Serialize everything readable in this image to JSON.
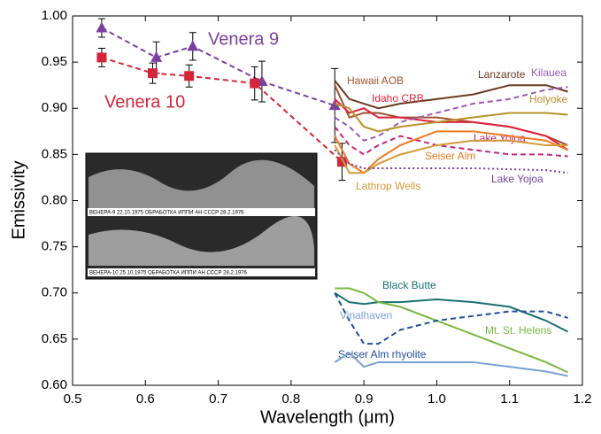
{
  "chart_data": {
    "type": "line",
    "xlabel": "Wavelength (μm)",
    "ylabel": "Emissivity",
    "xlim": [
      0.5,
      1.2
    ],
    "ylim": [
      0.6,
      1.0
    ],
    "xticks": [
      0.5,
      0.6,
      0.7,
      0.8,
      0.9,
      {
        "value": 1.0,
        "label": "1.0"
      },
      1.1,
      1.2
    ],
    "yticks": [
      {
        "value": 0.6,
        "label": "0.60"
      },
      0.65,
      {
        "value": 0.7,
        "label": "0.70"
      },
      0.75,
      {
        "value": 0.8,
        "label": "0.80"
      },
      0.85,
      {
        "value": 0.9,
        "label": "0.90"
      },
      0.95,
      {
        "value": 1.0,
        "label": "1.00"
      }
    ],
    "inset": {
      "captions": [
        "ВЕНЕРА-9   22.10.1975     ОБРАБОТКА ИППИ АН СССР   28.2.1976",
        "ВЕНЕРА-10  25.10.1975     ОБРАБОТКА ИППИ АН СССР   28.2.1976"
      ]
    },
    "series": [
      {
        "name": "Venera 9",
        "color": "#7b3fa0",
        "style": "dashed",
        "marker": "triangle",
        "x": [
          0.54,
          0.615,
          0.665,
          0.76,
          0.86
        ],
        "values": [
          0.987,
          0.955,
          0.967,
          0.929,
          0.903
        ],
        "errors": [
          0.01,
          0.017,
          0.015,
          0.022,
          0.04
        ]
      },
      {
        "name": "Venera 10",
        "color": "#d3263a",
        "style": "dashed",
        "marker": "square",
        "x": [
          0.54,
          0.61,
          0.66,
          0.75,
          0.87
        ],
        "values": [
          0.955,
          0.938,
          0.935,
          0.927,
          0.842
        ],
        "errors": [
          0.01,
          0.011,
          0.012,
          0.018,
          0.02
        ]
      },
      {
        "name": "Lanzarote",
        "color": "#6b3a1f",
        "style": "solid",
        "x": [
          0.86,
          0.88,
          0.9,
          0.92,
          0.95,
          1.0,
          1.05,
          1.1,
          1.15,
          1.18
        ],
        "values": [
          0.93,
          0.91,
          0.905,
          0.9,
          0.905,
          0.91,
          0.915,
          0.925,
          0.925,
          0.918
        ]
      },
      {
        "name": "Hawaii AOB",
        "color": "#a0522d",
        "style": "solid",
        "x": [
          0.86,
          0.88,
          0.9,
          0.92,
          0.95,
          1.0,
          1.05,
          1.1,
          1.15,
          1.18
        ],
        "values": [
          0.925,
          0.89,
          0.895,
          0.895,
          0.89,
          0.89,
          0.885,
          0.88,
          0.87,
          0.86
        ]
      },
      {
        "name": "Idaho CRB",
        "color": "#e0203a",
        "style": "solid",
        "x": [
          0.86,
          0.88,
          0.9,
          0.92,
          0.95,
          1.0,
          1.05,
          1.1,
          1.15,
          1.18
        ],
        "values": [
          0.91,
          0.895,
          0.9,
          0.89,
          0.89,
          0.885,
          0.885,
          0.88,
          0.87,
          0.855
        ]
      },
      {
        "name": "Kilauea",
        "color": "#9b59b6",
        "style": "dashed",
        "x": [
          0.86,
          0.88,
          0.9,
          0.92,
          0.95,
          1.0,
          1.05,
          1.1,
          1.15,
          1.18
        ],
        "values": [
          0.89,
          0.88,
          0.865,
          0.87,
          0.885,
          0.895,
          0.905,
          0.91,
          0.92,
          0.923
        ]
      },
      {
        "name": "Holyoke",
        "color": "#b8912a",
        "style": "solid",
        "x": [
          0.86,
          0.88,
          0.9,
          0.92,
          0.95,
          1.0,
          1.05,
          1.1,
          1.15,
          1.18
        ],
        "values": [
          0.905,
          0.9,
          0.88,
          0.875,
          0.88,
          0.885,
          0.89,
          0.895,
          0.895,
          0.893
        ]
      },
      {
        "name": "Lake Yojoa",
        "color": "#c0267a",
        "style": "dashed",
        "x": [
          0.86,
          0.88,
          0.9,
          0.92,
          0.95,
          1.0,
          1.05,
          1.1,
          1.15,
          1.18
        ],
        "values": [
          0.88,
          0.86,
          0.85,
          0.86,
          0.87,
          0.86,
          0.855,
          0.85,
          0.85,
          0.848
        ]
      },
      {
        "name": "Seiser Alm",
        "color": "#f07820",
        "style": "solid",
        "x": [
          0.86,
          0.88,
          0.9,
          0.92,
          0.95,
          1.0,
          1.05,
          1.1,
          1.15,
          1.18
        ],
        "values": [
          0.87,
          0.84,
          0.83,
          0.845,
          0.86,
          0.875,
          0.875,
          0.87,
          0.865,
          0.855
        ]
      },
      {
        "name": "Lathrop Wells",
        "color": "#d49a3a",
        "style": "solid",
        "x": [
          0.86,
          0.88,
          0.9,
          0.92,
          0.95,
          1.0,
          1.05,
          1.1,
          1.15,
          1.18
        ],
        "values": [
          0.86,
          0.83,
          0.83,
          0.84,
          0.85,
          0.86,
          0.865,
          0.865,
          0.86,
          0.86
        ]
      },
      {
        "name": "Lake Yojoa",
        "color": "#7040a0",
        "style": "dotted",
        "x": [
          0.86,
          0.88,
          0.9,
          0.92,
          0.95,
          1.0,
          1.05,
          1.1,
          1.15,
          1.18
        ],
        "values": [
          0.855,
          0.84,
          0.835,
          0.835,
          0.835,
          0.835,
          0.835,
          0.834,
          0.833,
          0.83
        ]
      },
      {
        "name": "Black Butte",
        "color": "#1a7070",
        "style": "solid",
        "x": [
          0.86,
          0.88,
          0.9,
          0.92,
          0.95,
          1.0,
          1.05,
          1.1,
          1.15,
          1.18
        ],
        "values": [
          0.7,
          0.69,
          0.688,
          0.69,
          0.69,
          0.693,
          0.69,
          0.685,
          0.67,
          0.658
        ]
      },
      {
        "name": "Mt. St. Helens",
        "color": "#7ab840",
        "style": "solid",
        "x": [
          0.86,
          0.88,
          0.9,
          0.92,
          0.95,
          1.0,
          1.05,
          1.1,
          1.15,
          1.18
        ],
        "values": [
          0.705,
          0.705,
          0.7,
          0.69,
          0.685,
          0.67,
          0.655,
          0.64,
          0.625,
          0.614
        ]
      },
      {
        "name": "Seiser Alm rhyolite",
        "color": "#1f4e9a",
        "style": "dashed",
        "x": [
          0.86,
          0.88,
          0.9,
          0.92,
          0.95,
          1.0,
          1.05,
          1.1,
          1.15,
          1.18
        ],
        "values": [
          0.7,
          0.67,
          0.645,
          0.645,
          0.66,
          0.67,
          0.675,
          0.68,
          0.68,
          0.673
        ]
      },
      {
        "name": "Vinalhaven",
        "color": "#7a9fd4",
        "style": "solid",
        "x": [
          0.86,
          0.88,
          0.9,
          0.92,
          0.95,
          1.0,
          1.05,
          1.1,
          1.15,
          1.18
        ],
        "values": [
          0.625,
          0.635,
          0.62,
          0.625,
          0.625,
          0.625,
          0.625,
          0.62,
          0.615,
          0.61
        ]
      }
    ]
  }
}
